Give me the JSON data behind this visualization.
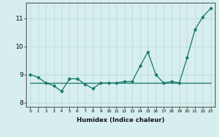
{
  "x": [
    0,
    1,
    2,
    3,
    4,
    5,
    6,
    7,
    8,
    9,
    10,
    11,
    12,
    13,
    14,
    15,
    16,
    17,
    18,
    19,
    20,
    21,
    22,
    23
  ],
  "y_main": [
    9.0,
    8.9,
    8.7,
    8.6,
    8.4,
    8.85,
    8.85,
    8.65,
    8.5,
    8.7,
    8.7,
    8.7,
    8.75,
    8.75,
    9.3,
    9.8,
    9.0,
    8.7,
    8.75,
    8.7,
    9.6,
    10.6,
    11.05,
    11.35
  ],
  "y_flat": [
    8.7,
    8.7,
    8.7,
    8.7,
    8.7,
    8.7,
    8.7,
    8.7,
    8.7,
    8.7,
    8.7,
    8.7,
    8.7,
    8.7,
    8.7,
    8.7,
    8.7,
    8.7,
    8.7,
    8.7,
    8.7,
    8.7,
    8.7,
    8.7
  ],
  "line_color": "#1a7a6e",
  "bg_color": "#d6eeee",
  "grid_color": "#c0dede",
  "xlabel": "Humidex (Indice chaleur)",
  "ylim": [
    7.85,
    11.55
  ],
  "xlim": [
    -0.5,
    23.5
  ],
  "yticks": [
    8,
    9,
    10,
    11
  ],
  "xticks": [
    0,
    1,
    2,
    3,
    4,
    5,
    6,
    7,
    8,
    9,
    10,
    11,
    12,
    13,
    14,
    15,
    16,
    17,
    18,
    19,
    20,
    21,
    22,
    23
  ]
}
